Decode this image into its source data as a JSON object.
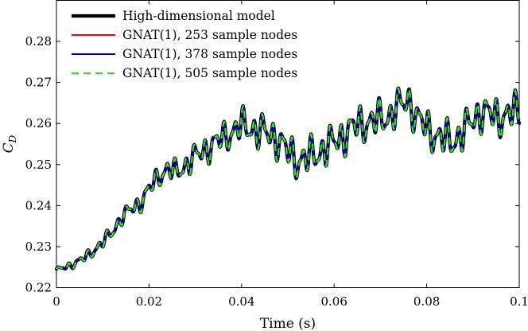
{
  "chart_data": {
    "type": "line",
    "title": "",
    "xlabel": "Time (s)",
    "ylabel_main": "C",
    "ylabel_sub": "D",
    "xlim": [
      0,
      0.1
    ],
    "ylim": [
      0.22,
      0.29
    ],
    "xticks": [
      0,
      0.02,
      0.04,
      0.06,
      0.08,
      0.1
    ],
    "xtick_labels": [
      "0",
      "0.02",
      "0.04",
      "0.06",
      "0.08",
      "0.1"
    ],
    "yticks": [
      0.22,
      0.23,
      0.24,
      0.25,
      0.26,
      0.27,
      0.28
    ],
    "ytick_labels": [
      "0.22",
      "0.23",
      "0.24",
      "0.25",
      "0.26",
      "0.27",
      "0.28"
    ],
    "legend_position": "top-left",
    "trend": {
      "x": [
        0,
        0.002,
        0.004,
        0.006,
        0.008,
        0.01,
        0.012,
        0.014,
        0.016,
        0.018,
        0.02,
        0.022,
        0.024,
        0.026,
        0.028,
        0.03,
        0.032,
        0.034,
        0.036,
        0.038,
        0.04,
        0.042,
        0.044,
        0.046,
        0.048,
        0.05,
        0.052,
        0.054,
        0.056,
        0.058,
        0.06,
        0.062,
        0.064,
        0.066,
        0.068,
        0.07,
        0.072,
        0.074,
        0.076,
        0.078,
        0.08,
        0.082,
        0.084,
        0.086,
        0.088,
        0.09,
        0.092,
        0.094,
        0.096,
        0.098,
        0.1
      ],
      "y": [
        0.2243,
        0.225,
        0.226,
        0.2272,
        0.229,
        0.231,
        0.2335,
        0.237,
        0.239,
        0.2405,
        0.244,
        0.247,
        0.249,
        0.248,
        0.25,
        0.252,
        0.2535,
        0.255,
        0.2565,
        0.258,
        0.2595,
        0.259,
        0.258,
        0.2575,
        0.256,
        0.253,
        0.251,
        0.2515,
        0.2525,
        0.254,
        0.2555,
        0.257,
        0.259,
        0.26,
        0.2605,
        0.261,
        0.262,
        0.264,
        0.266,
        0.261,
        0.259,
        0.257,
        0.256,
        0.256,
        0.258,
        0.261,
        0.263,
        0.262,
        0.2615,
        0.2625,
        0.263
      ]
    },
    "oscillation": {
      "amplitude_start": 0.0006,
      "amplitude_end": 0.0045,
      "period_s": 0.0021
    },
    "series": [
      {
        "name": "High-dimensional model",
        "color": "#000000",
        "style": "solid",
        "width": 4.2,
        "offset": 0
      },
      {
        "name": "GNAT(1), 253 sample nodes",
        "color": "#ff0000",
        "style": "solid",
        "width": 2,
        "offset": 8e-05
      },
      {
        "name": "GNAT(1), 378 sample nodes",
        "color": "#0000cc",
        "style": "solid",
        "width": 2,
        "offset": 0
      },
      {
        "name": "GNAT(1), 505 sample nodes",
        "color": "#33dd33",
        "style": "dashed",
        "width": 2.2,
        "offset": -5e-05
      }
    ]
  }
}
